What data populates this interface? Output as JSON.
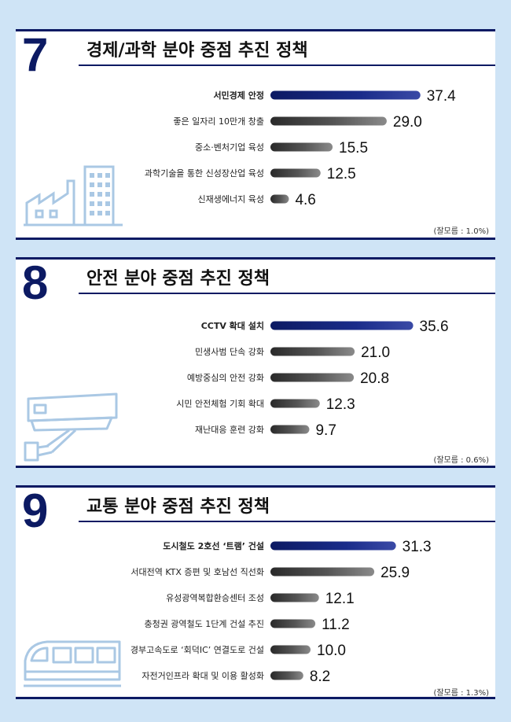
{
  "colors": {
    "navy": "#0c1a63",
    "bar_dark": "#2a2a2a",
    "bar_mid": "#777777",
    "illustration": "#aac8e4"
  },
  "sections": [
    {
      "number": "7",
      "title": "경제/과학 분야 중점 추진 정책",
      "note": "(잘모름 : 1.0%)",
      "icon": "factory-icon"
    },
    {
      "number": "8",
      "title": "안전 분야 중점 추진 정책",
      "note": "(잘모름 : 0.6%)",
      "icon": "cctv-camera-icon"
    },
    {
      "number": "9",
      "title": "교통 분야 중점 추진 정책",
      "note": "(잘모름 : 1.3%)",
      "icon": "tram-icon"
    }
  ],
  "chart_data": [
    {
      "type": "bar",
      "orientation": "horizontal",
      "categories": [
        "서민경제 안정",
        "좋은 일자리 10만개 창출",
        "중소·벤처기업 육성",
        "과학기술을 통한 신성장산업 육성",
        "신재생에너지 육성"
      ],
      "values": [
        37.4,
        29.0,
        15.5,
        12.5,
        4.6
      ],
      "value_labels": [
        "37.4",
        "29.0",
        "15.5",
        "12.5",
        "4.6"
      ],
      "highlight_index": 0
    },
    {
      "type": "bar",
      "orientation": "horizontal",
      "categories": [
        "CCTV 확대 설치",
        "민생사범 단속 강화",
        "예방중심의 안전 강화",
        "시민 안전체험 기회 확대",
        "재난대응 훈련 강화"
      ],
      "values": [
        35.6,
        21.0,
        20.8,
        12.3,
        9.7
      ],
      "value_labels": [
        "35.6",
        "21.0",
        "20.8",
        "12.3",
        "9.7"
      ],
      "highlight_index": 0
    },
    {
      "type": "bar",
      "orientation": "horizontal",
      "categories": [
        "도시철도 2호선 ‘트램’ 건설",
        "서대전역 KTX 증편 및 호남선 직선화",
        "유성광역복합환승센터 조성",
        "충청권 광역철도 1단계 건설 추진",
        "경부고속도로 ‘회덕IC’ 연결도로 건설",
        "자전거인프라 확대 및 이용 활성화"
      ],
      "values": [
        31.3,
        25.9,
        12.1,
        11.2,
        10.0,
        8.2
      ],
      "value_labels": [
        "31.3",
        "25.9",
        "12.1",
        "11.2",
        "10.0",
        "8.2"
      ],
      "highlight_index": 0
    }
  ]
}
